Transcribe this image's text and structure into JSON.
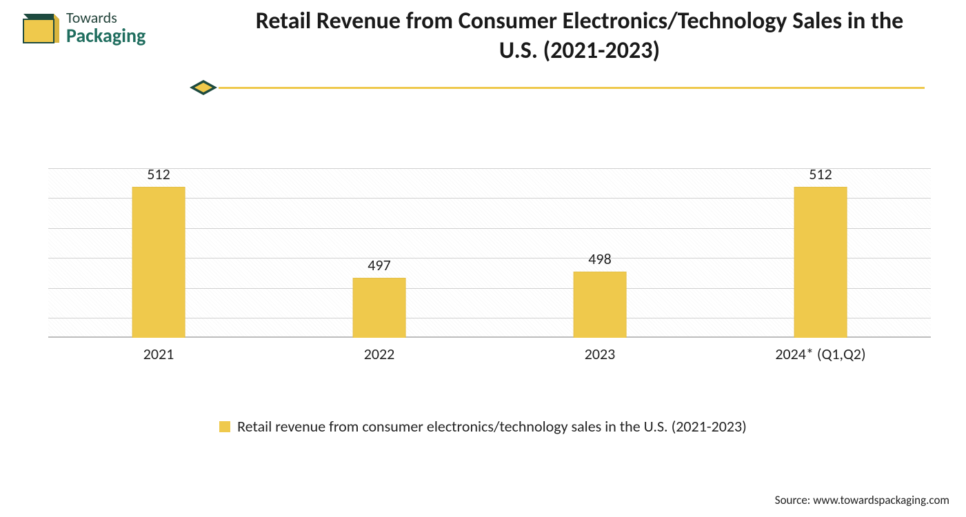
{
  "logo": {
    "line1": "Towards",
    "line2": "Packaging",
    "text_color_1": "#23433a",
    "text_color_2": "#1f6d5e",
    "box_fill": "#efc94c",
    "box_stroke": "#1d4a3f"
  },
  "title": "Retail Revenue from Consumer Electronics/Technology Sales in the U.S. (2021-2023)",
  "title_color": "#1a1a1a",
  "title_fontsize": 34,
  "rule": {
    "color": "#efc94c",
    "icon_dark": "#1d4a3f",
    "icon_light": "#efc94c"
  },
  "chart": {
    "type": "bar",
    "categories": [
      "2021",
      "2022",
      "2023",
      "2024* (Q1,Q2)"
    ],
    "values": [
      512,
      497,
      498,
      512
    ],
    "bar_color": "#efc94c",
    "bar_width_pct": 24,
    "value_fontsize": 22,
    "label_fontsize": 22,
    "text_color": "#222222",
    "y_min": 487,
    "y_max": 515,
    "gridlines_at": [
      490,
      495,
      500,
      505,
      510,
      515
    ],
    "grid_color": "#d0d0d0",
    "axis_color": "#bdbdbd",
    "background_color": "#ffffff"
  },
  "legend": {
    "label": "Retail revenue from consumer electronics/technology sales in the U.S. (2021-2023)",
    "swatch_color": "#efc94c",
    "fontsize": 22,
    "text_color": "#222222"
  },
  "source": {
    "text": "Source: www.towardspackaging.com",
    "fontsize": 17,
    "color": "#222222"
  }
}
